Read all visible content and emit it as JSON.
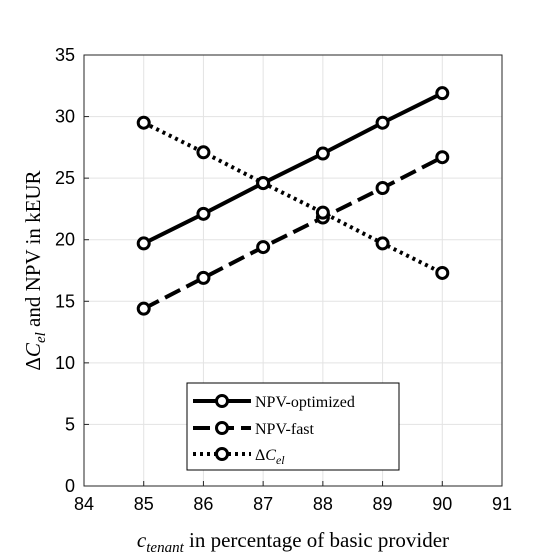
{
  "chart_data": {
    "type": "line",
    "title": "",
    "x": [
      85,
      86,
      87,
      88,
      89,
      90
    ],
    "xlim": [
      84,
      91
    ],
    "ylim": [
      0,
      35
    ],
    "xticks": [
      84,
      85,
      86,
      87,
      88,
      89,
      90,
      91
    ],
    "yticks": [
      0,
      5,
      10,
      15,
      20,
      25,
      30,
      35
    ],
    "xlabel": {
      "var": "c",
      "sub": "tenant",
      "rest": " in percentage of basic provider"
    },
    "ylabel": {
      "prefix": "Δ",
      "var": "C",
      "sub": "el",
      "rest": " and NPV in kEUR"
    },
    "grid": true,
    "legend_position": "bottom-center",
    "series": [
      {
        "name": "NPV-optimized",
        "style": "solid",
        "color": "#000000",
        "values": [
          19.7,
          22.1,
          24.6,
          27.0,
          29.5,
          31.9
        ]
      },
      {
        "name": "NPV-fast",
        "style": "dashed",
        "color": "#000000",
        "values": [
          14.4,
          16.9,
          19.4,
          21.8,
          24.2,
          26.7
        ]
      },
      {
        "name": "ΔC_el",
        "style": "dotted",
        "color": "#000000",
        "legend_prefix": "Δ",
        "legend_var": "C",
        "legend_sub": "el",
        "values": [
          29.5,
          27.1,
          24.6,
          22.2,
          19.7,
          17.3
        ]
      }
    ]
  }
}
